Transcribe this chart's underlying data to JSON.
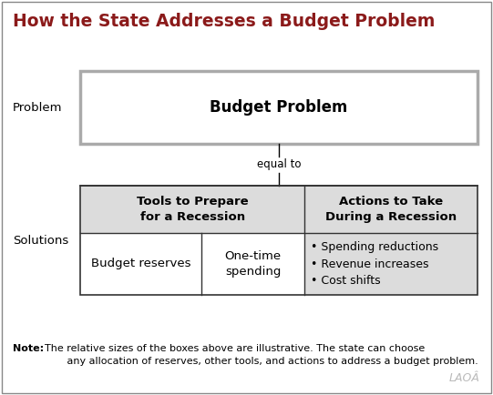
{
  "title": "How the State Addresses a Budget Problem",
  "title_color": "#8B1A1A",
  "title_fontsize": 13.5,
  "bg_color": "#FFFFFF",
  "box_fill_light": "#DCDCDC",
  "problem_label": "Problem",
  "solutions_label": "Solutions",
  "budget_problem_text": "Budget Problem",
  "equal_to_text": "equal to",
  "tools_header": "Tools to Prepare\nfor a Recession",
  "actions_header": "Actions to Take\nDuring a Recession",
  "budget_reserves_text": "Budget reserves",
  "one_time_text": "One-time\nspending",
  "actions_list": "• Spending reductions\n• Revenue increases\n• Cost shifts",
  "note_bold": "Note:",
  "note_rest": "  The relative sizes of the boxes above are illustrative. The state can choose\n         any allocation of reserves, other tools, and actions to address a budget problem.",
  "lao_text": "LAOÂ",
  "label_fontsize": 9.5,
  "header_fontsize": 9.5,
  "body_fontsize": 9.5,
  "note_fontsize": 8.0,
  "outer_border_color": "#888888",
  "bp_border_color": "#AAAAAA",
  "table_border_color": "#333333"
}
